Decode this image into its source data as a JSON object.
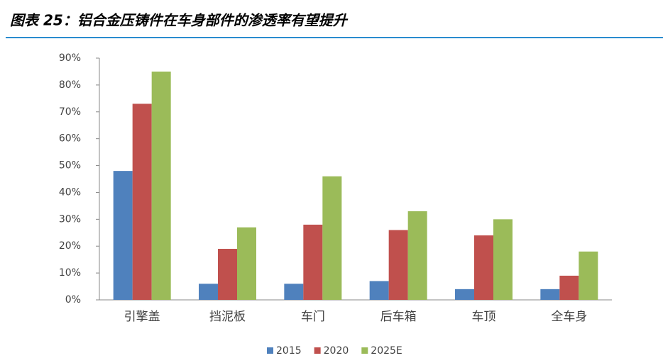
{
  "chart_data": {
    "type": "bar",
    "title": "图表 25：铝合金压铸件在车身部件的渗透率有望提升",
    "categories": [
      "引擎盖",
      "挡泥板",
      "车门",
      "后车箱",
      "车顶",
      "全车身"
    ],
    "series": [
      {
        "name": "2015",
        "color": "#4f81bd",
        "values": [
          48,
          6,
          6,
          7,
          4,
          4
        ]
      },
      {
        "name": "2020",
        "color": "#c0504d",
        "values": [
          73,
          19,
          28,
          26,
          24,
          9
        ]
      },
      {
        "name": "2025E",
        "color": "#9bbb59",
        "values": [
          85,
          27,
          46,
          33,
          30,
          18
        ]
      }
    ],
    "ylim": [
      0,
      90
    ],
    "yticks": [
      {
        "value": 0,
        "label": "0%"
      },
      {
        "value": 10,
        "label": "10%"
      },
      {
        "value": 20,
        "label": "20%"
      },
      {
        "value": 30,
        "label": "30%"
      },
      {
        "value": 40,
        "label": "40%"
      },
      {
        "value": 50,
        "label": "50%"
      },
      {
        "value": 60,
        "label": "60%"
      },
      {
        "value": 70,
        "label": "70%"
      },
      {
        "value": 80,
        "label": "80%"
      },
      {
        "value": 90,
        "label": "90%"
      }
    ],
    "grid": false,
    "legend": "bottom"
  }
}
